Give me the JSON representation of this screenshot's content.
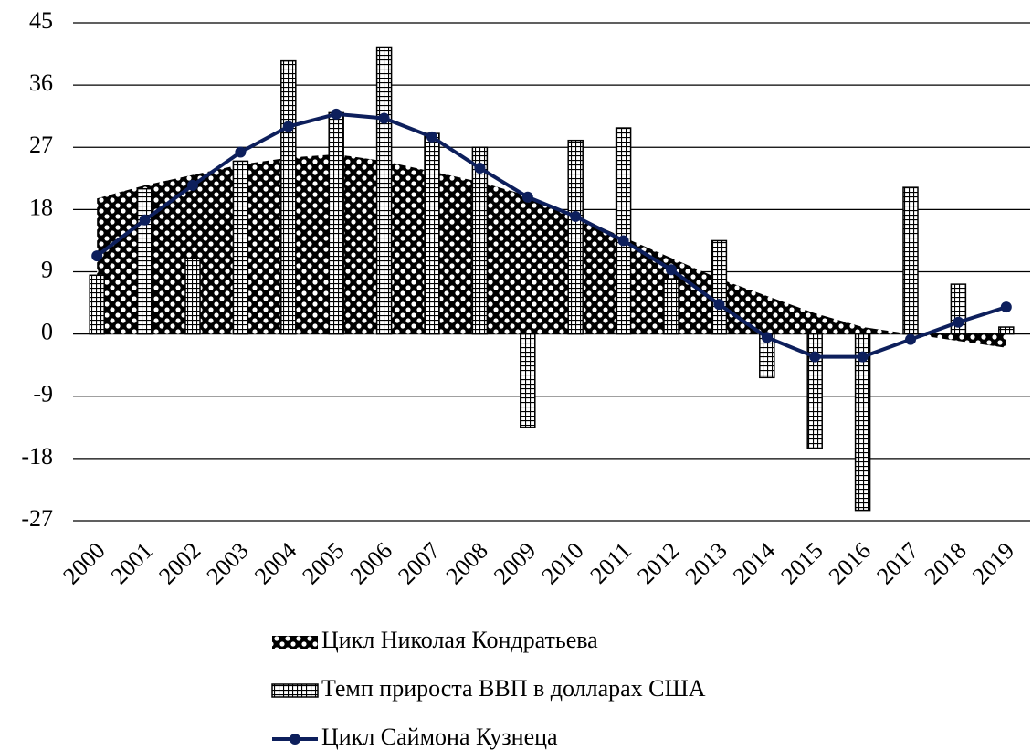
{
  "chart_data": {
    "type": "combo",
    "categories": [
      "2000",
      "2001",
      "2002",
      "2003",
      "2004",
      "2005",
      "2006",
      "2007",
      "2008",
      "2009",
      "2010",
      "2011",
      "2012",
      "2013",
      "2014",
      "2015",
      "2016",
      "2017",
      "2018",
      "2019"
    ],
    "series": [
      {
        "name": "Цикл Николая Кондратьева",
        "type": "area",
        "color": "#000000",
        "values": [
          19.6,
          21.5,
          23,
          24.5,
          25.5,
          26,
          25,
          23.5,
          22,
          20,
          17,
          14,
          11,
          8,
          5.5,
          3,
          1,
          0,
          -1,
          -2
        ]
      },
      {
        "name": "Темп прироста ВВП в долларах США",
        "type": "bar",
        "color": "#000000",
        "values": [
          8.5,
          21,
          11,
          25,
          39.5,
          32,
          41.5,
          29,
          27,
          -13.5,
          28,
          29.8,
          8,
          13.5,
          -6.3,
          -16.5,
          -25.5,
          21.2,
          7.2,
          1
        ]
      },
      {
        "name": "Цикл Саймона Кузнеца",
        "type": "line",
        "color": "#0d1f5c",
        "values": [
          11.3,
          16.5,
          21.5,
          26.3,
          30,
          31.8,
          31.2,
          28.5,
          24,
          19.8,
          17,
          13.5,
          9.3,
          4.3,
          -0.5,
          -3.3,
          -3.3,
          -0.8,
          1.7,
          3.9
        ]
      }
    ],
    "ylim": [
      -27,
      45
    ],
    "yticks": [
      -27,
      -18,
      -9,
      0,
      9,
      18,
      27,
      36,
      45
    ],
    "grid": true
  }
}
